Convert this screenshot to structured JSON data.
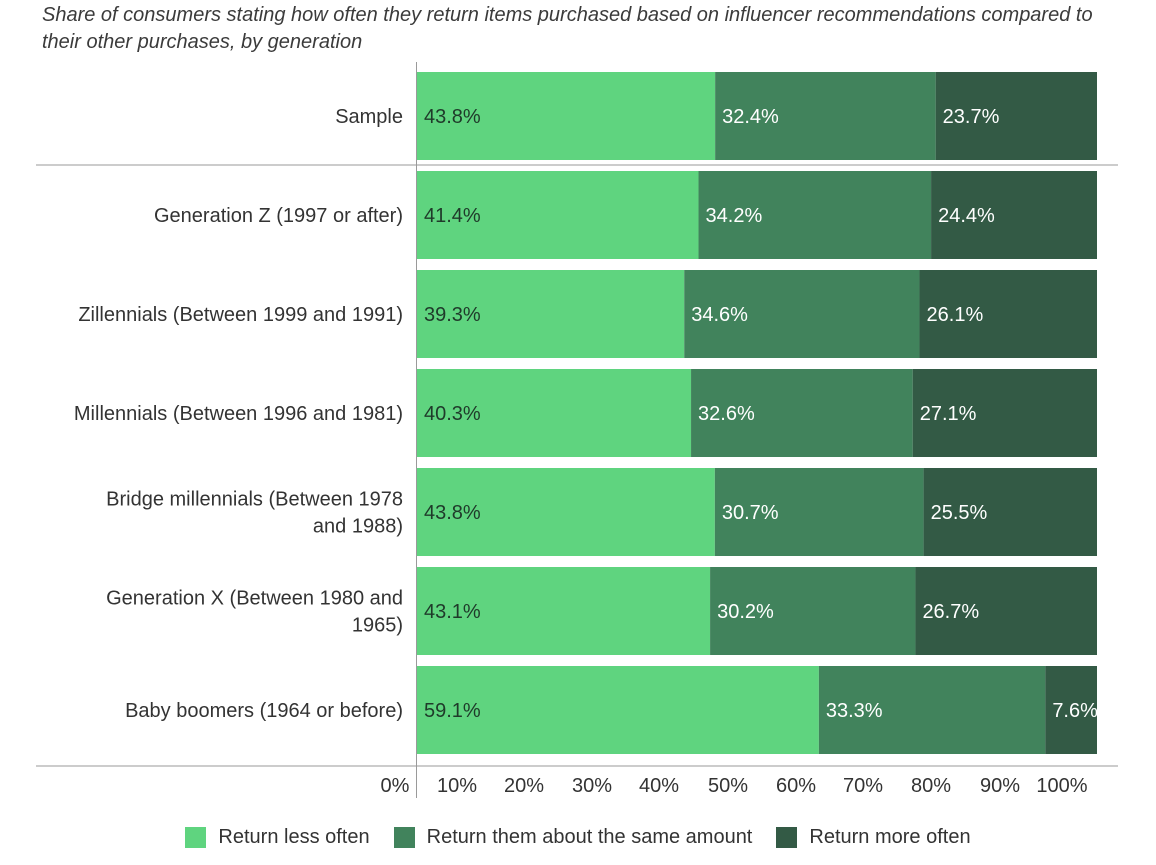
{
  "chart_data": {
    "type": "bar",
    "orientation": "horizontal",
    "stacked": true,
    "subtitle": "Share of consumers stating how often they return items purchased based on influencer recommendations compared to their other purchases, by generation",
    "categories": [
      [
        "Sample"
      ],
      [
        "Generation Z (1997 or after)"
      ],
      [
        "Zillennials (Between 1999 and 1991)"
      ],
      [
        "Millennials (Between 1996 and 1981)"
      ],
      [
        "Bridge millennials (Between 1978",
        "and 1988)"
      ],
      [
        "Generation X (Between 1980 and",
        "1965)"
      ],
      [
        "Baby boomers (1964 or before)"
      ]
    ],
    "series": [
      {
        "name": "Return less often",
        "color": "#5fd47f",
        "values": [
          43.8,
          41.4,
          39.3,
          40.3,
          43.8,
          43.1,
          59.1
        ],
        "labels": [
          "43.8%",
          "41.4%",
          "39.3%",
          "40.3%",
          "43.8%",
          "43.1%",
          "59.1%"
        ]
      },
      {
        "name": "Return them about the same amount",
        "color": "#41835c",
        "values": [
          32.4,
          34.2,
          34.6,
          32.6,
          30.7,
          30.2,
          33.3
        ],
        "labels": [
          "32.4%",
          "34.2%",
          "34.6%",
          "32.6%",
          "30.7%",
          "30.2%",
          "33.3%"
        ]
      },
      {
        "name": "Return more often",
        "color": "#335a45",
        "values": [
          23.7,
          24.4,
          26.1,
          27.1,
          25.5,
          26.7,
          7.6
        ],
        "labels": [
          "23.7%",
          "24.4%",
          "26.1%",
          "27.1%",
          "25.5%",
          "26.7%",
          "7.6%"
        ]
      }
    ],
    "x_ticks": [
      "0%",
      "10%",
      "20%",
      "30%",
      "40%",
      "50%",
      "60%",
      "70%",
      "80%",
      "90%",
      "100%"
    ],
    "legend_position": "bottom"
  }
}
